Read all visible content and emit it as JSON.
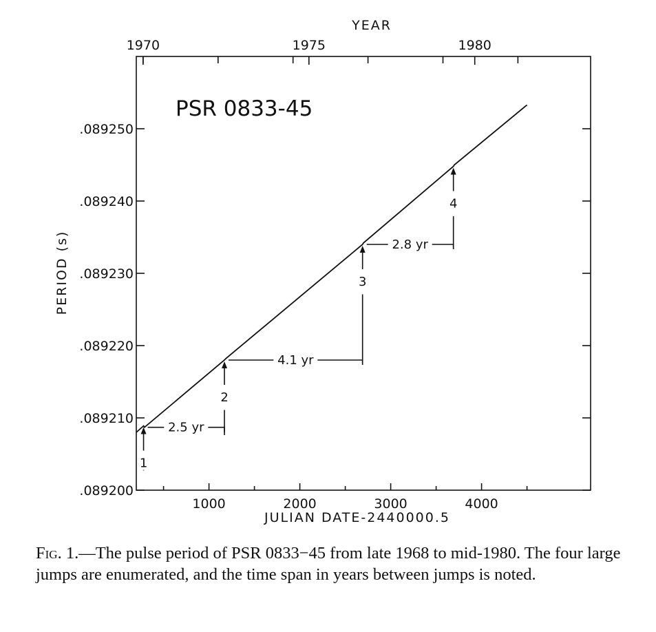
{
  "chart_data": {
    "type": "line",
    "title": "PSR 0833-45",
    "xlabel": "JULIAN DATE-2440000.5",
    "ylabel": "PERIOD (s)",
    "top_axis_label": "YEAR",
    "xlim": [
      200,
      5200
    ],
    "ylim": [
      0.0892,
      0.08926
    ],
    "x_ticks": [
      1000,
      2000,
      3000,
      4000
    ],
    "x_tick_labels": [
      "1000",
      "2000",
      "3000",
      "4000"
    ],
    "y_ticks": [
      0.0892,
      0.08921,
      0.08922,
      0.08923,
      0.08924,
      0.08925
    ],
    "y_tick_labels": [
      ".089200",
      ".089210",
      ".089220",
      ".089230",
      ".089240",
      ".089250"
    ],
    "top_ticks_jd": [
      275,
      1100,
      1925,
      2750,
      3575,
      4400
    ],
    "top_labeled": [
      {
        "jd": 275,
        "label": "1970"
      },
      {
        "jd": 2100,
        "label": "1975"
      },
      {
        "jd": 3925,
        "label": "1980"
      }
    ],
    "series": [
      {
        "x": [
          200,
          280,
          290,
          1170,
          1185,
          2690,
          2700,
          3690,
          3700,
          4500
        ],
        "y": [
          0.089208,
          0.0892089,
          0.0892087,
          0.089218,
          0.0892182,
          0.089234,
          0.0892342,
          0.0892448,
          0.089245,
          0.0892533
        ]
      }
    ],
    "jumps": [
      {
        "label": "1",
        "x": 280,
        "y": 0.0892089
      },
      {
        "label": "2",
        "x": 1170,
        "y": 0.089218
      },
      {
        "label": "3",
        "x": 2690,
        "y": 0.089234
      },
      {
        "label": "4",
        "x": 3690,
        "y": 0.0892448
      }
    ],
    "intervals": [
      {
        "label": "2.5 yr",
        "from": 280,
        "to": 1170,
        "y": 0.0892087
      },
      {
        "label": "4.1 yr",
        "from": 1170,
        "to": 2690,
        "y": 0.089218
      },
      {
        "label": "2.8 yr",
        "from": 2690,
        "to": 3690,
        "y": 0.089234
      }
    ]
  },
  "caption": {
    "fig_label": "Fig. 1.",
    "text": "—The pulse period of PSR 0833−45 from late 1968 to mid-1980. The four large jumps are enumerated, and the time span in years between jumps is noted."
  }
}
